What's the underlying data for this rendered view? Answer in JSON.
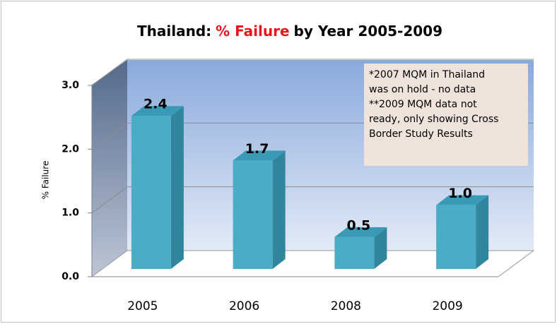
{
  "chart_data": {
    "type": "bar3d",
    "title_parts": [
      {
        "text": "Thailand:",
        "color": "#000000"
      },
      {
        "text": "% Failure",
        "color": "#e8141c"
      },
      {
        "text": "by Year 2005-2009",
        "color": "#000000"
      }
    ],
    "y_label": "% Failure",
    "categories": [
      "2005",
      "2006",
      "2008",
      "2009"
    ],
    "values": [
      2.4,
      1.7,
      0.5,
      1.0
    ],
    "value_labels": [
      "2.4",
      "1.7",
      "0.5",
      "1.0"
    ],
    "color": "#4bacc6",
    "ylim": [
      0,
      3
    ],
    "yticks": [
      {
        "value": 0,
        "label": "0.0"
      },
      {
        "value": 1,
        "label": "1.0"
      },
      {
        "value": 2,
        "label": "2.0"
      },
      {
        "value": 3,
        "label": "3.0"
      }
    ],
    "grid": true,
    "annotation": [
      "*2007 MQM in Thailand",
      "was on hold - no data",
      "**2009 MQM data not",
      "ready, only showing Cross",
      "Border Study Results"
    ]
  }
}
